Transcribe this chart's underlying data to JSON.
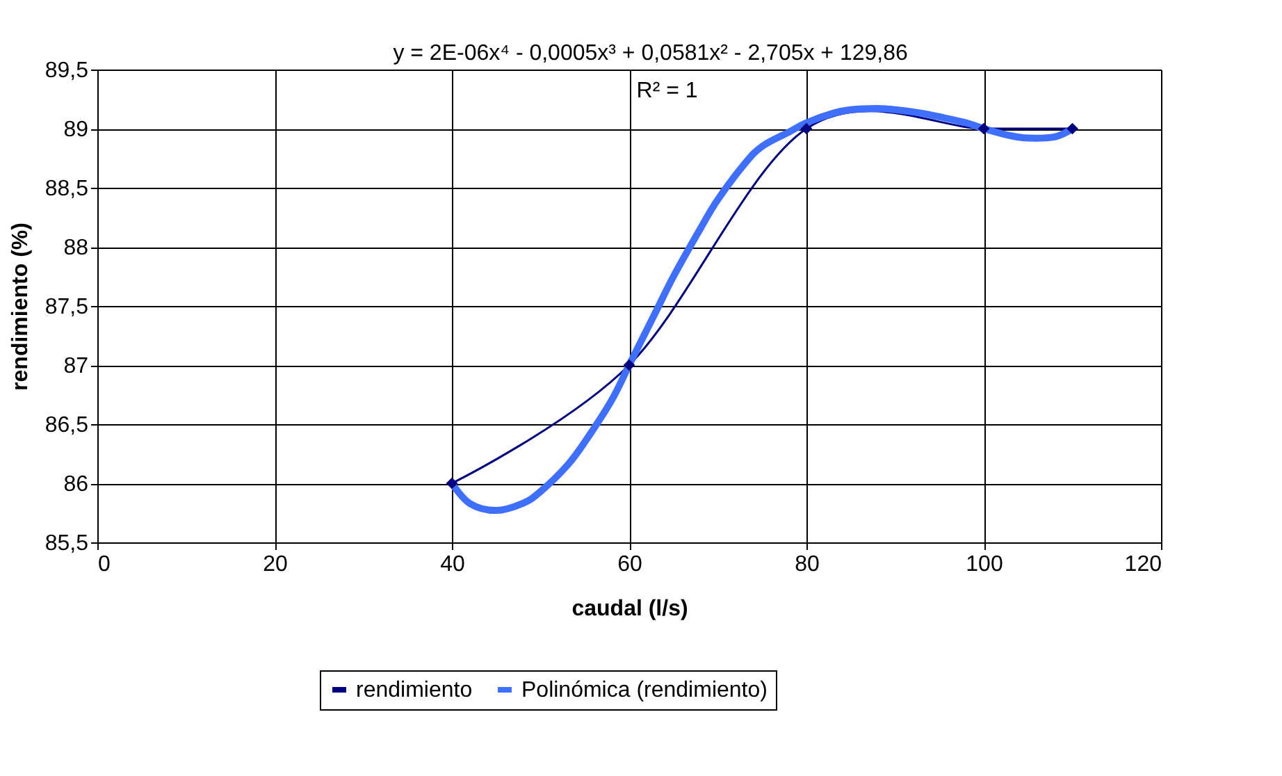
{
  "chart_data": {
    "type": "line",
    "xlabel": "caudal (l/s)",
    "ylabel": "rendimiento (%)",
    "annotations": [
      "y = 2E-06x⁴ - 0,0005x³ + 0,0581x² - 2,705x + 129,86",
      "R² = 1"
    ],
    "series": [
      {
        "name": "rendimiento",
        "color": "#000080",
        "x": [
          40,
          60,
          80,
          100,
          110
        ],
        "values": [
          86,
          87,
          89,
          89,
          89
        ],
        "marker": "diamond",
        "line_style": "solid"
      },
      {
        "name": "Polinómica (rendimiento)",
        "color": "#3f6fff",
        "x": [
          40,
          42,
          45,
          48,
          50,
          53,
          55,
          58,
          60,
          63,
          65,
          68,
          70,
          73,
          75,
          78,
          80,
          83,
          85,
          88,
          90,
          93,
          95,
          98,
          100,
          103,
          105,
          108,
          110
        ],
        "values": [
          86,
          85.83,
          85.77,
          85.83,
          85.93,
          86.15,
          86.35,
          86.7,
          87,
          87.45,
          87.75,
          88.15,
          88.4,
          88.7,
          88.85,
          88.97,
          89.05,
          89.13,
          89.16,
          89.17,
          89.16,
          89.13,
          89.1,
          89.05,
          89,
          88.94,
          88.92,
          88.93,
          89
        ],
        "marker": "none",
        "line_style": "solid"
      }
    ],
    "xlim": [
      0,
      120
    ],
    "xticks": [
      0,
      20,
      40,
      60,
      80,
      100,
      120
    ],
    "ylim": [
      85.5,
      89.5
    ],
    "yticks": [
      {
        "value": 85.5,
        "label": "85,5"
      },
      {
        "value": 86,
        "label": "86"
      },
      {
        "value": 86.5,
        "label": "86,5"
      },
      {
        "value": 87,
        "label": "87"
      },
      {
        "value": 87.5,
        "label": "87,5"
      },
      {
        "value": 88,
        "label": "88"
      },
      {
        "value": 88.5,
        "label": "88,5"
      },
      {
        "value": 89,
        "label": "89"
      },
      {
        "value": 89.5,
        "label": "89,5"
      }
    ],
    "grid": true,
    "legend": "bottom"
  }
}
